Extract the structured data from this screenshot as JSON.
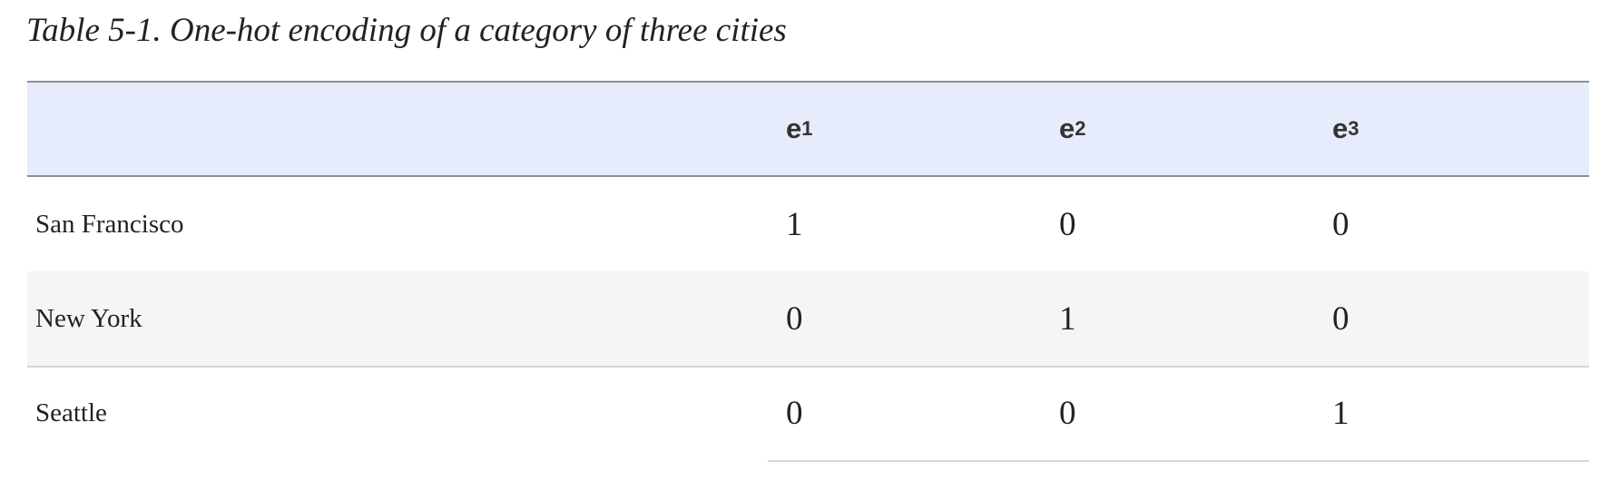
{
  "caption": {
    "label": "Table 5-1",
    "text": ". One-hot encoding of a category of three cities"
  },
  "table": {
    "headers": [
      {
        "base": "e",
        "sub": "1"
      },
      {
        "base": "e",
        "sub": "2"
      },
      {
        "base": "e",
        "sub": "3"
      }
    ],
    "rows": [
      {
        "label": "San Francisco",
        "values": [
          "1",
          "0",
          "0"
        ]
      },
      {
        "label": "New York",
        "values": [
          "0",
          "1",
          "0"
        ]
      },
      {
        "label": "Seattle",
        "values": [
          "0",
          "0",
          "1"
        ]
      }
    ]
  },
  "colors": {
    "header_background": "#e7ecfd",
    "shaded_row_background": "#f5f5f5",
    "text": "#222222"
  }
}
